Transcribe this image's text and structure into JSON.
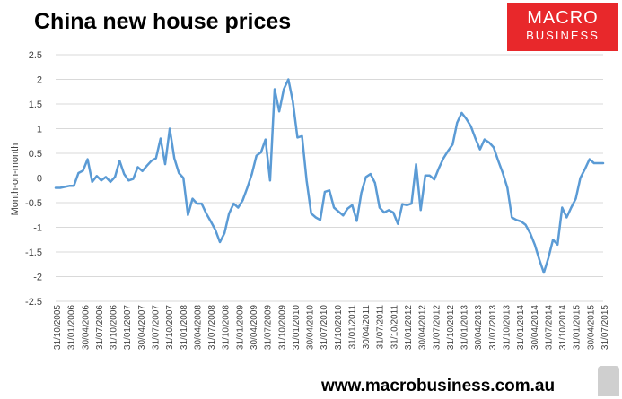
{
  "header": {
    "title": "China new house prices",
    "logo_line1": "MACRO",
    "logo_line2": "BUSINESS",
    "footer_url": "www.macrobusiness.com.au"
  },
  "colors": {
    "line": "#5b9bd5",
    "grid": "#d9d9d9",
    "logo_bg": "#e8282b"
  },
  "chart_data": {
    "type": "line",
    "ylabel": "Month-on-month",
    "xlabel": "",
    "ylim": [
      -2.5,
      2.5
    ],
    "yticks": [
      2.5,
      2,
      1.5,
      1,
      0.5,
      0,
      -0.5,
      -1,
      -1.5,
      -2,
      -2.5
    ],
    "grid": "horizontal",
    "xticks": [
      "31/10/2005",
      "31/01/2006",
      "30/04/2006",
      "31/07/2006",
      "31/10/2006",
      "31/01/2007",
      "30/04/2007",
      "31/07/2007",
      "31/10/2007",
      "31/01/2008",
      "30/04/2008",
      "31/07/2008",
      "31/10/2008",
      "31/01/2009",
      "30/04/2009",
      "31/07/2009",
      "31/10/2009",
      "31/01/2010",
      "30/04/2010",
      "31/07/2010",
      "31/10/2010",
      "31/01/2011",
      "30/04/2011",
      "31/07/2011",
      "31/10/2011",
      "31/01/2012",
      "30/04/2012",
      "31/07/2012",
      "31/10/2012",
      "31/01/2013",
      "30/04/2013",
      "31/07/2013",
      "31/10/2013",
      "31/01/2014",
      "30/04/2014",
      "31/07/2014",
      "31/10/2014",
      "31/01/2015",
      "30/04/2015",
      "31/07/2015"
    ],
    "series": [
      {
        "values": [
          -0.2,
          -0.2,
          -0.18,
          -0.16,
          -0.16,
          0.1,
          0.15,
          0.38,
          -0.08,
          0.04,
          -0.05,
          0.02,
          -0.08,
          0.02,
          0.35,
          0.08,
          -0.05,
          -0.02,
          0.22,
          0.14,
          0.25,
          0.35,
          0.4,
          0.8,
          0.28,
          1.0,
          0.4,
          0.1,
          0.0,
          -0.75,
          -0.42,
          -0.52,
          -0.52,
          -0.72,
          -0.88,
          -1.05,
          -1.3,
          -1.12,
          -0.72,
          -0.52,
          -0.6,
          -0.45,
          -0.2,
          0.08,
          0.45,
          0.52,
          0.78,
          -0.05,
          1.8,
          1.35,
          1.8,
          2.0,
          1.55,
          0.82,
          0.85,
          -0.05,
          -0.72,
          -0.8,
          -0.85,
          -0.28,
          -0.25,
          -0.6,
          -0.68,
          -0.76,
          -0.62,
          -0.55,
          -0.87,
          -0.3,
          0.02,
          0.08,
          -0.1,
          -0.6,
          -0.7,
          -0.65,
          -0.7,
          -0.93,
          -0.53,
          -0.55,
          -0.52,
          0.28,
          -0.65,
          0.05,
          0.05,
          -0.03,
          0.2,
          0.4,
          0.55,
          0.68,
          1.12,
          1.32,
          1.2,
          1.05,
          0.8,
          0.58,
          0.78,
          0.72,
          0.62,
          0.35,
          0.1,
          -0.2,
          -0.8,
          -0.85,
          -0.88,
          -0.95,
          -1.12,
          -1.35,
          -1.65,
          -1.92,
          -1.62,
          -1.25,
          -1.35,
          -0.6,
          -0.8,
          -0.6,
          -0.42,
          0.0,
          0.18,
          0.38,
          0.3,
          0.3,
          0.3
        ]
      }
    ]
  }
}
